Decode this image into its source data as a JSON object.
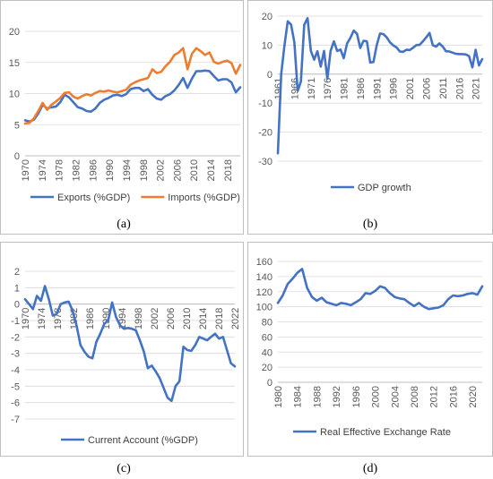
{
  "captions": [
    "(a)",
    "(b)",
    "(c)",
    "(d)"
  ],
  "chart_data": [
    {
      "type": "line",
      "title": "",
      "xlabel": "",
      "ylabel": "",
      "ylim": [
        0,
        20
      ],
      "yticks": [
        0,
        5,
        10,
        15,
        20
      ],
      "grid": true,
      "legend": "bottom",
      "x_start": 1970,
      "x_end": 2021,
      "xticks": [
        "1970",
        "1974",
        "1978",
        "1982",
        "1986",
        "1990",
        "1994",
        "1998",
        "2002",
        "2006",
        "2010",
        "2014",
        "2018"
      ],
      "series": [
        {
          "name": "Exports (%GDP)",
          "color": "#4472c4",
          "values": [
            5.7,
            5.5,
            5.8,
            6.8,
            8.2,
            7.6,
            7.8,
            7.9,
            8.6,
            9.8,
            9.4,
            8.6,
            7.8,
            7.6,
            7.2,
            7.1,
            7.6,
            8.5,
            9.0,
            9.3,
            9.7,
            9.8,
            9.6,
            9.9,
            10.7,
            10.9,
            10.9,
            10.4,
            10.7,
            9.8,
            9.2,
            9.0,
            9.6,
            9.9,
            10.5,
            11.4,
            12.5,
            10.9,
            12.4,
            13.6,
            13.6,
            13.7,
            13.6,
            12.8,
            12.1,
            12.3,
            12.3,
            11.8,
            10.2,
            11.0
          ]
        },
        {
          "name": "Imports (%GDP)",
          "color": "#ed7d31",
          "values": [
            5.2,
            5.3,
            6.0,
            7.2,
            8.5,
            7.4,
            8.2,
            8.7,
            9.3,
            10.1,
            10.2,
            9.5,
            9.2,
            9.6,
            9.9,
            9.7,
            10.1,
            10.4,
            10.3,
            10.5,
            10.3,
            10.2,
            10.4,
            10.6,
            11.4,
            11.8,
            12.1,
            12.3,
            12.5,
            13.9,
            13.3,
            13.5,
            14.4,
            15.1,
            16.2,
            16.6,
            17.3,
            13.9,
            16.4,
            17.3,
            16.8,
            16.2,
            16.6,
            15.1,
            14.8,
            15.1,
            15.3,
            14.9,
            13.2,
            14.6
          ]
        }
      ]
    },
    {
      "type": "line",
      "title": "",
      "xlabel": "",
      "ylabel": "",
      "ylim": [
        -30,
        20
      ],
      "yticks": [
        -30,
        -20,
        -10,
        0,
        10,
        20
      ],
      "grid": true,
      "legend": "bottom",
      "x_start": 1961,
      "x_end": 2023,
      "xticks": [
        "1961",
        "1966",
        "1971",
        "1976",
        "1981",
        "1986",
        "1991",
        "1996",
        "2001",
        "2006",
        "2011",
        "2016",
        "2021"
      ],
      "series": [
        {
          "name": "GDP growth",
          "color": "#4472c4",
          "values": [
            -27.3,
            0.0,
            10.0,
            18.2,
            17.1,
            11.0,
            -5.8,
            -2.5,
            17.0,
            19.3,
            8.0,
            5.0,
            7.9,
            2.6,
            8.0,
            -1.6,
            8.0,
            11.3,
            8.0,
            8.5,
            5.5,
            10.6,
            12.5,
            15.0,
            13.9,
            9.0,
            11.5,
            11.3,
            4.0,
            4.2,
            10.0,
            14.0,
            13.8,
            12.7,
            11.0,
            9.9,
            9.2,
            7.8,
            7.7,
            8.4,
            8.3,
            9.1,
            10.0,
            10.1,
            11.3,
            12.7,
            14.2,
            10.0,
            9.5,
            10.6,
            9.5,
            7.9,
            7.8,
            7.4,
            7.0,
            6.9,
            6.9,
            6.8,
            6.2,
            2.3,
            8.4,
            3.0,
            5.2
          ]
        }
      ]
    },
    {
      "type": "line",
      "title": "",
      "xlabel": "",
      "ylabel": "",
      "ylim": [
        -7,
        2
      ],
      "yticks": [
        -7,
        -6,
        -5,
        -4,
        -3,
        -2,
        -1,
        0,
        1,
        2
      ],
      "grid": true,
      "legend": "bottom",
      "x_start": 1970,
      "x_end": 2022,
      "xticks": [
        "1970",
        "1974",
        "1978",
        "1982",
        "1986",
        "1990",
        "1994",
        "1998",
        "2002",
        "2006",
        "2010",
        "2014",
        "2018",
        "2022"
      ],
      "series": [
        {
          "name": "Current Account (%GDP)",
          "color": "#4472c4",
          "values": [
            0.3,
            0.0,
            -0.3,
            0.5,
            0.2,
            1.1,
            0.3,
            -0.7,
            -0.6,
            0.0,
            0.1,
            0.15,
            -0.4,
            -1.3,
            -2.5,
            -2.9,
            -3.2,
            -3.3,
            -2.3,
            -1.8,
            -1.2,
            -1.0,
            0.1,
            -0.8,
            -1.3,
            -1.5,
            -1.45,
            -1.5,
            -1.6,
            -2.2,
            -2.9,
            -3.9,
            -3.75,
            -4.1,
            -4.5,
            -5.1,
            -5.7,
            -5.9,
            -5.0,
            -4.7,
            -2.6,
            -2.8,
            -2.85,
            -2.5,
            -2.0,
            -2.1,
            -2.2,
            -2.0,
            -1.8,
            -2.1,
            -2.0,
            -2.8,
            -3.6,
            -3.8
          ]
        }
      ]
    },
    {
      "type": "line",
      "title": "",
      "xlabel": "",
      "ylabel": "",
      "ylim": [
        0,
        160
      ],
      "yticks": [
        0,
        20,
        40,
        60,
        80,
        100,
        120,
        140,
        160
      ],
      "grid": true,
      "legend": "bottom",
      "x_start": 1980,
      "x_end": 2022,
      "xticks": [
        "1980",
        "1984",
        "1988",
        "1992",
        "1996",
        "2000",
        "2004",
        "2008",
        "2012",
        "2016",
        "2020"
      ],
      "series": [
        {
          "name": "Real Effective Exchange Rate",
          "color": "#4472c4",
          "values": [
            105,
            115,
            130,
            137,
            145,
            150,
            125,
            113,
            108,
            112,
            106,
            104,
            102,
            105,
            104,
            102,
            106,
            110,
            118,
            117,
            121,
            127,
            125,
            118,
            113,
            111,
            110,
            105,
            101,
            105,
            100,
            97,
            98,
            99,
            102,
            110,
            115,
            114,
            115,
            117,
            118,
            116,
            127
          ]
        }
      ]
    }
  ]
}
